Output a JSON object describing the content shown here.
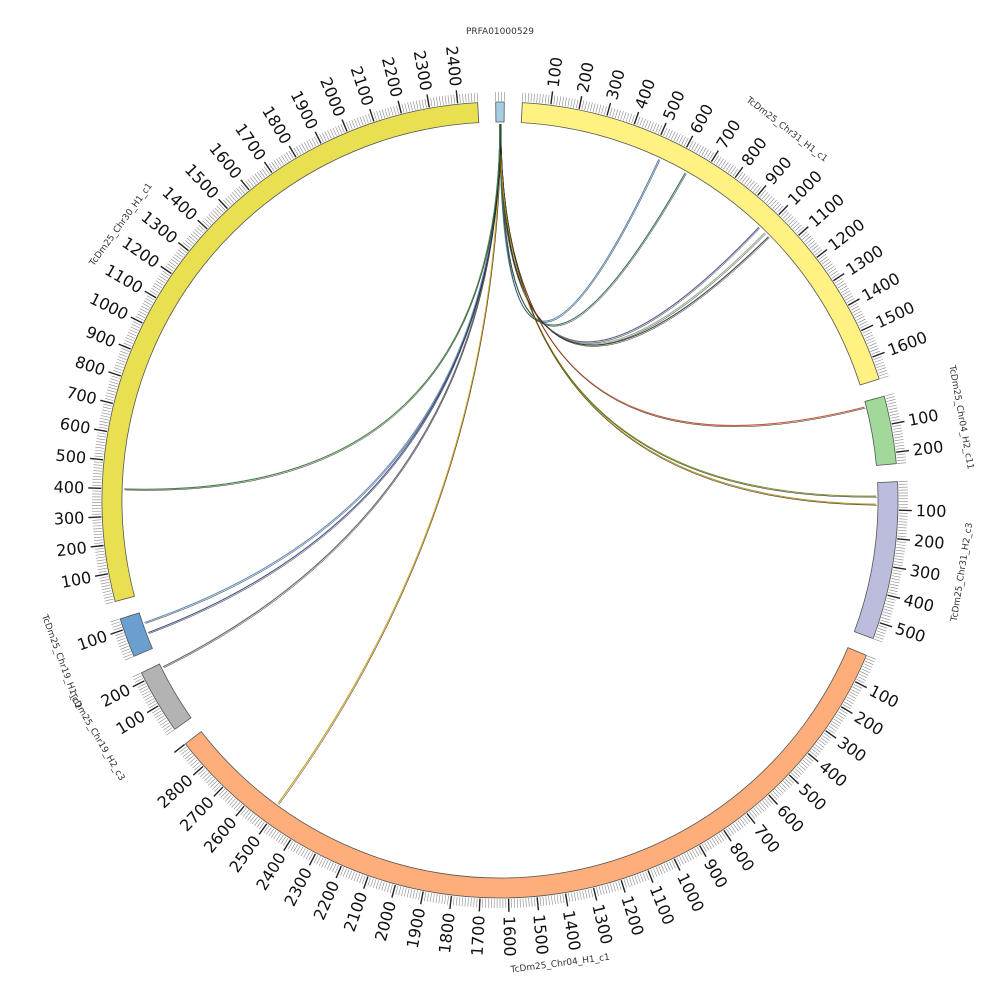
{
  "chart_data": {
    "type": "circos",
    "segments": [
      {
        "name": "PRFA01000529",
        "length": 30,
        "color": "#a6cee3",
        "ticks": []
      },
      {
        "name": "TcDm25_Chr31_H1_c1",
        "length": 1680,
        "color": "#fff282",
        "ticks": [
          100,
          200,
          300,
          400,
          500,
          600,
          700,
          800,
          900,
          1000,
          1100,
          1200,
          1300,
          1400,
          1500,
          1600
        ]
      },
      {
        "name": "TcDm25_Chr04_H2_c11",
        "length": 240,
        "color": "#a1d99b",
        "ticks": [
          100,
          200
        ]
      },
      {
        "name": "TcDm25_Chr31_H2_c3",
        "length": 560,
        "color": "#bcbddc",
        "ticks": [
          100,
          200,
          300,
          400,
          500
        ]
      },
      {
        "name": "TcDm25_Chr04_H1_c1",
        "length": 2900,
        "color": "#fdae7b",
        "ticks": [
          100,
          200,
          300,
          400,
          500,
          600,
          700,
          800,
          900,
          1000,
          1100,
          1200,
          1300,
          1400,
          1500,
          1600,
          1700,
          1800,
          1900,
          2000,
          2100,
          2200,
          2300,
          2400,
          2500,
          2600,
          2700,
          2800
        ]
      },
      {
        "name": "TcDm25_Chr19_H2_c3",
        "length": 230,
        "color": "#b3b3b3",
        "ticks": [
          100,
          200
        ]
      },
      {
        "name": "TcDm25_Chr19_H1_c1",
        "length": 140,
        "color": "#6a9fd0",
        "ticks": [
          100
        ]
      },
      {
        "name": "TcDm25_Chr30_H1_c1",
        "length": 2470,
        "color": "#e8e050",
        "ticks": [
          100,
          200,
          300,
          400,
          500,
          600,
          700,
          800,
          900,
          1000,
          1100,
          1200,
          1300,
          1400,
          1500,
          1600,
          1700,
          1800,
          1900,
          2000,
          2100,
          2200,
          2300,
          2400
        ]
      }
    ],
    "links": [
      {
        "source": "PRFA01000529",
        "target": "TcDm25_Chr31_H1_c1",
        "position": 530,
        "color": "#4a7fb0"
      },
      {
        "source": "PRFA01000529",
        "target": "TcDm25_Chr31_H1_c1",
        "position": 640,
        "color": "#2a6a4a"
      },
      {
        "source": "PRFA01000529",
        "target": "TcDm25_Chr31_H1_c1",
        "position": 980,
        "color": "#5a4a8a"
      },
      {
        "source": "PRFA01000529",
        "target": "TcDm25_Chr31_H1_c1",
        "position": 1010,
        "color": "#8ab080"
      },
      {
        "source": "PRFA01000529",
        "target": "TcDm25_Chr31_H1_c1",
        "position": 1030,
        "color": "#3a3a3a"
      },
      {
        "source": "PRFA01000529",
        "target": "TcDm25_Chr04_H2_c11",
        "position": 20,
        "color": "#c0502a"
      },
      {
        "source": "PRFA01000529",
        "target": "TcDm25_Chr31_H2_c3",
        "position": 50,
        "color": "#6a8a20"
      },
      {
        "source": "PRFA01000529",
        "target": "TcDm25_Chr31_H2_c3",
        "position": 80,
        "color": "#b08a10"
      },
      {
        "source": "PRFA01000529",
        "target": "TcDm25_Chr04_H1_c1",
        "position": 2510,
        "color": "#c89a10"
      },
      {
        "source": "PRFA01000529",
        "target": "TcDm25_Chr19_H2_c3",
        "position": 215,
        "color": "#5a5a6a"
      },
      {
        "source": "PRFA01000529",
        "target": "TcDm25_Chr19_H1_c1",
        "position": 60,
        "color": "#3a4a8a"
      },
      {
        "source": "PRFA01000529",
        "target": "TcDm25_Chr19_H1_c1",
        "position": 100,
        "color": "#5a8ac0"
      },
      {
        "source": "PRFA01000529",
        "target": "TcDm25_Chr30_H1_c1",
        "position": 400,
        "color": "#3a7a3a"
      }
    ]
  }
}
